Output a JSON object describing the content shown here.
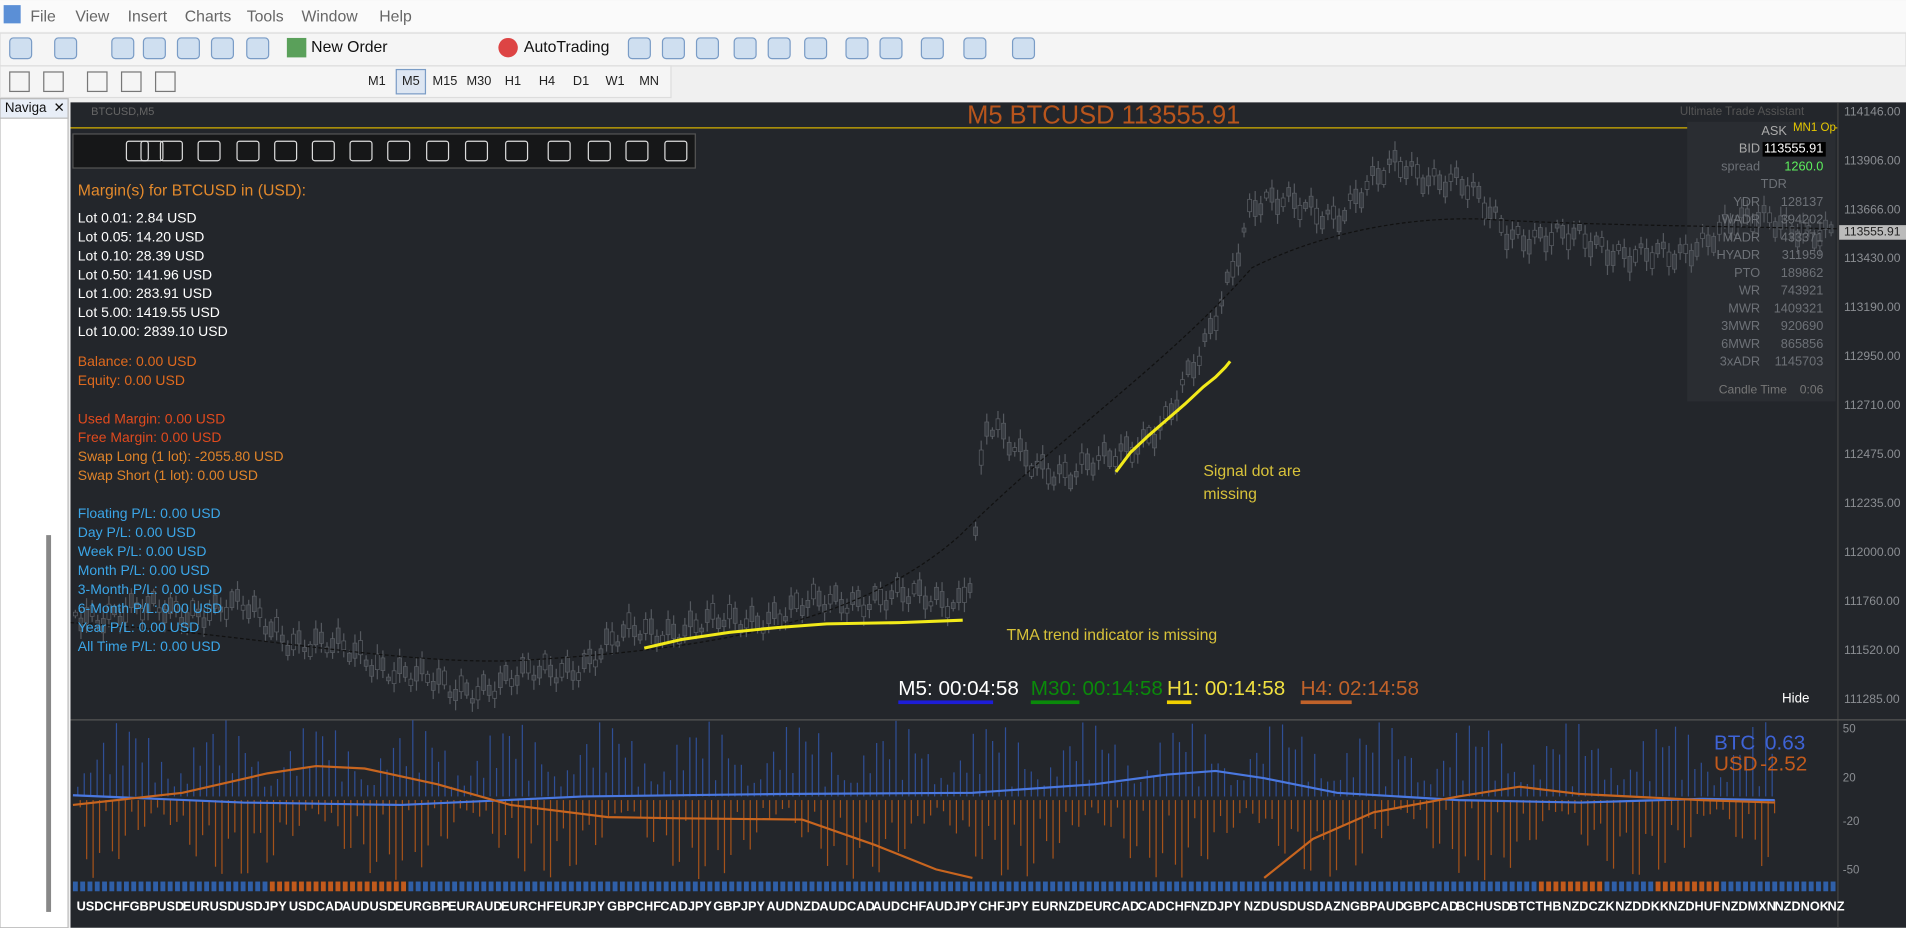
{
  "menu": [
    "File",
    "View",
    "Insert",
    "Charts",
    "Tools",
    "Window",
    "Help"
  ],
  "toolbar": {
    "new_order": "New Order",
    "autotrading": "AutoTrading",
    "timeframes": [
      "M1",
      "M5",
      "M15",
      "M30",
      "H1",
      "H4",
      "D1",
      "W1",
      "MN"
    ]
  },
  "navigator": {
    "tab": "Naviga"
  },
  "chart": {
    "symbol_label": "BTCUSD,M5",
    "title": "M5 BTCUSD 113555.91",
    "assistant": "Ultimate Trade Assistant",
    "mn1": "MN1 Op",
    "margin_panel": {
      "title": "Margin(s) for BTCUSD in (USD):",
      "lots": [
        "Lot 0.01: 2.84 USD",
        "Lot 0.05: 14.20 USD",
        "Lot 0.10: 28.39 USD",
        "Lot 0.50: 141.96 USD",
        "Lot 1.00: 283.91 USD",
        "Lot 5.00: 1419.55 USD",
        "Lot 10.00: 2839.10 USD"
      ],
      "account": [
        "Balance: 0.00 USD",
        "Equity: 0.00 USD"
      ],
      "margin": [
        "Used Margin: 0.00 USD",
        "Free Margin: 0.00 USD",
        "Swap Long (1 lot): -2055.80 USD",
        "Swap Short (1 lot): 0.00 USD"
      ],
      "pnl": [
        "Floating P/L: 0.00 USD",
        "Day P/L: 0.00 USD",
        "Week P/L: 0.00 USD",
        "Month P/L: 0.00 USD",
        "3-Month P/L: 0.00 USD",
        "6-Month P/L: 0.00 USD",
        "Year P/L: 0.00 USD",
        "All Time P/L: 0.00 USD"
      ]
    },
    "stats": [
      {
        "label": "ASK"
      },
      {
        "label": "BID",
        "value": "113555.91"
      },
      {
        "label": "spread",
        "value": "1260.0"
      },
      {
        "label": "TDR"
      },
      {
        "label": "YDR",
        "value": "128137"
      },
      {
        "label": "WADR",
        "value": "394202"
      },
      {
        "label": "MADR",
        "value": "433371"
      },
      {
        "label": "HYADR",
        "value": "311959"
      },
      {
        "label": "PTO",
        "value": "189862"
      },
      {
        "label": "WR",
        "value": "743921"
      },
      {
        "label": "MWR",
        "value": "1409321"
      },
      {
        "label": "3MWR",
        "value": "920690"
      },
      {
        "label": "6MWR",
        "value": "865856"
      },
      {
        "label": "3xADR",
        "value": "1145703"
      }
    ],
    "candle_time": {
      "label": "Candle Time",
      "value": "0:06"
    },
    "price_axis": [
      "114146.00",
      "113906.00",
      "113666.00",
      "113430.00",
      "113190.00",
      "112950.00",
      "112710.00",
      "112475.00",
      "112235.00",
      "112000.00",
      "111760.00",
      "111520.00",
      "111285.00"
    ],
    "current_price": "113555.91",
    "timers": [
      "M5: 00:04:58",
      "M30: 00:14:58",
      "H1: 00:14:58",
      "H4: 02:14:58"
    ],
    "hide": "Hide",
    "annotations": {
      "signal": [
        "Signal dot are",
        "missing"
      ],
      "tma": "TMA trend indicator is missing"
    }
  },
  "indicator": {
    "base_label": "BTC",
    "base_value": "0.63",
    "quote_label": "USD",
    "quote_value": "-2.52",
    "axis": [
      "50",
      "20",
      "-20",
      "-50"
    ]
  },
  "symbols": [
    "USDCHF",
    "GBPUSD",
    "EURUSD",
    "USDJPY",
    "USDCAD",
    "AUDUSD",
    "EURGBP",
    "EURAUD",
    "EURCHF",
    "EURJPY",
    "GBPCHF",
    "CADJPY",
    "GBPJPY",
    "AUDNZD",
    "AUDCAD",
    "AUDCHF",
    "AUDJPY",
    "CHFJPY",
    "EURNZD",
    "EURCAD",
    "CADCHF",
    "NZDJPY",
    "NZDUSD",
    "USDAZN",
    "GBPAUD",
    "GBPCAD",
    "BCHUSD",
    "BTCTHB",
    "NZDCZK",
    "NZDDKK",
    "NZDHUF",
    "NZDMXN",
    "NZDNOK",
    "NZ"
  ]
}
